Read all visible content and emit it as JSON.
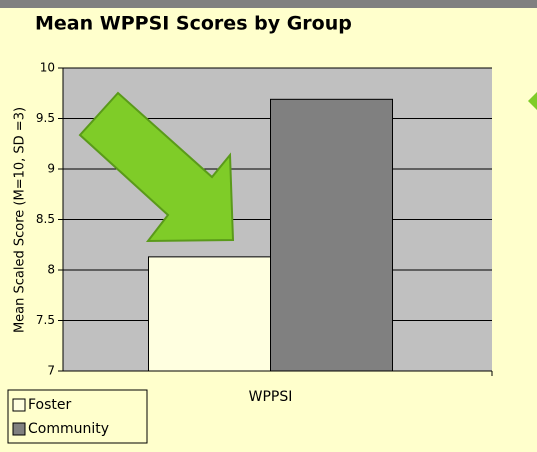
{
  "chart_data": {
    "type": "bar",
    "title": "Mean WPPSI Scores by Group",
    "y_label": "Mean Scaled Score (M=10, SD =3)",
    "categories": [
      "WPPSI"
    ],
    "series": [
      {
        "name": "Foster",
        "color": "#ffffe0",
        "values": [
          8.13
        ]
      },
      {
        "name": "Community",
        "color": "#808080",
        "values": [
          9.69
        ]
      }
    ],
    "ylim": [
      7,
      10
    ],
    "yticks": [
      7,
      7.5,
      8,
      8.5,
      9,
      9.5,
      10
    ],
    "grid": true,
    "legend": "bottom-left"
  }
}
